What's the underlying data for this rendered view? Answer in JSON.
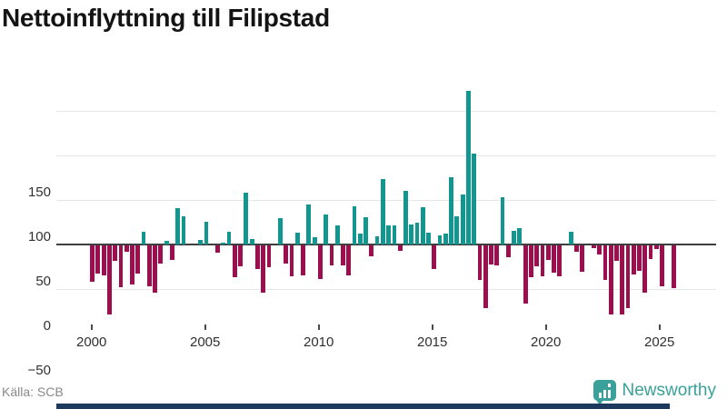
{
  "title": "Nettoinflyttning till Filipstad",
  "source": "Källa: SCB",
  "branding": {
    "name": "Newsworthy",
    "icon": "newsworthy-speech-bubble-chart-icon",
    "text_color": "#3aa09a",
    "footer_bar_color": "#1d3a5e"
  },
  "chart_data": {
    "type": "bar",
    "title": "Nettoinflyttning till Filipstad",
    "frequency": "quarterly",
    "start_period": "2000 Q1",
    "end_period": "2025 Q3",
    "x_tick_labels": [
      "2000",
      "2005",
      "2010",
      "2015",
      "2020",
      "2025"
    ],
    "y_tick_labels": [
      "150",
      "100",
      "50",
      "0",
      "−50"
    ],
    "y_ticks": [
      150,
      100,
      50,
      0,
      -50
    ],
    "ylim": [
      -90,
      183
    ],
    "grid": "horizontal",
    "legend": "none",
    "positive_color": "#129690",
    "negative_color": "#9c0e4e",
    "values": [
      -41,
      -32,
      -34,
      -78,
      -17,
      -47,
      -7,
      -44,
      -32,
      14,
      -46,
      -53,
      -20,
      4,
      -16,
      41,
      32,
      0,
      0,
      5,
      26,
      0,
      -8,
      2,
      14,
      -36,
      -23,
      58,
      6,
      -27,
      -53,
      -24,
      0,
      30,
      -20,
      -35,
      13,
      -34,
      45,
      8,
      -38,
      34,
      -22,
      21,
      -22,
      -34,
      43,
      12,
      31,
      -12,
      9,
      73,
      21,
      21,
      -6,
      60,
      22,
      24,
      42,
      13,
      -27,
      10,
      12,
      76,
      32,
      56,
      172,
      102,
      -39,
      -70,
      -21,
      -22,
      53,
      -13,
      15,
      18,
      -65,
      -36,
      -23,
      -35,
      -16,
      -31,
      -35,
      0,
      14,
      -7,
      -30,
      0,
      -3,
      -10,
      -39,
      -78,
      -17,
      -78,
      -70,
      -33,
      -29,
      -53,
      -15,
      -4,
      -46,
      0,
      -48
    ]
  }
}
